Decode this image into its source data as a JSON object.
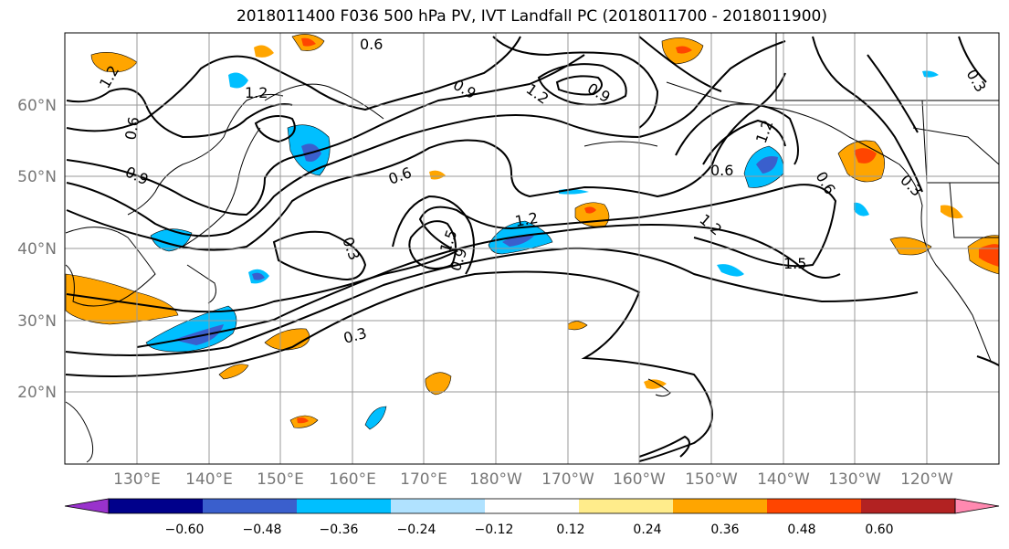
{
  "title": "2018011400 F036 500 hPa PV, IVT Landfall PC (2018011700 - 2018011900)",
  "lat_labels": [
    "60°N",
    "50°N",
    "40°N",
    "30°N",
    "20°N"
  ],
  "lon_labels": [
    "130°E",
    "140°E",
    "150°E",
    "160°E",
    "170°E",
    "180°W",
    "170°W",
    "160°W",
    "150°W",
    "140°W",
    "130°W",
    "120°W"
  ],
  "contour_labels": [
    "0.6",
    "1.2",
    "1.2",
    "0.9",
    "1.2",
    "0.6",
    "0.9",
    "0.6",
    "0.3",
    "1.5",
    "0.9",
    "1.2",
    "0.6",
    "1.2",
    "0.6",
    "1.5",
    "0.3",
    "0.3",
    "0.3",
    "1.2",
    "0.9"
  ],
  "colorbar": {
    "ticks": [
      "−0.60",
      "−0.48",
      "−0.36",
      "−0.24",
      "−0.12",
      "0.12",
      "0.24",
      "0.36",
      "0.48",
      "0.60"
    ],
    "colors": [
      "#9932cc",
      "#00008b",
      "#3a5fcd",
      "#00bfff",
      "#b0e2ff",
      "#ffffff",
      "#ffec8b",
      "#ffa500",
      "#ff4500",
      "#b22222",
      "#ff89b0"
    ]
  }
}
